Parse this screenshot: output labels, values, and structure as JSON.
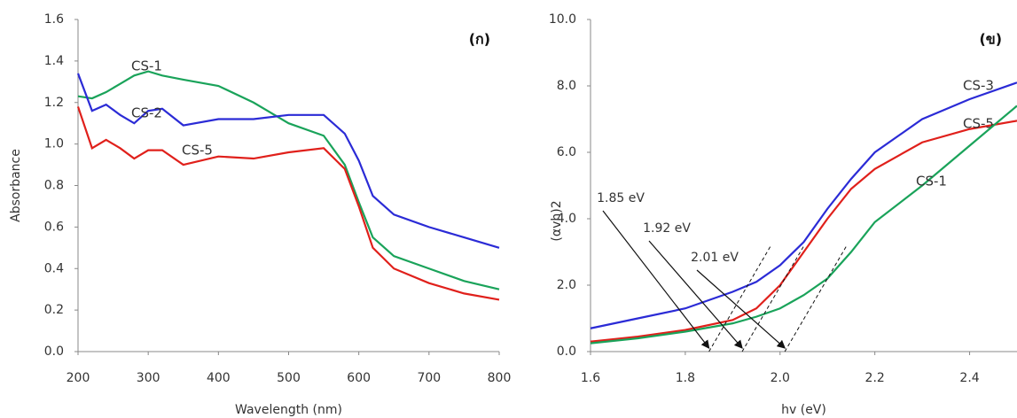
{
  "chart_data": [
    {
      "type": "line",
      "panel_label": "(ก)",
      "x_label": "Wavelength (nm)",
      "y_label": "Absorbance",
      "x": [
        200,
        220,
        240,
        260,
        280,
        300,
        320,
        350,
        400,
        450,
        500,
        550,
        580,
        600,
        620,
        650,
        700,
        750,
        800
      ],
      "series": [
        {
          "name": "CS-1",
          "color": "#1aa35a",
          "values": [
            1.23,
            1.22,
            1.25,
            1.29,
            1.33,
            1.35,
            1.33,
            1.31,
            1.28,
            1.2,
            1.1,
            1.04,
            0.9,
            0.72,
            0.55,
            0.46,
            0.4,
            0.34,
            0.3
          ]
        },
        {
          "name": "CS-2",
          "color": "#2b2bd6",
          "values": [
            1.34,
            1.16,
            1.19,
            1.14,
            1.1,
            1.16,
            1.17,
            1.09,
            1.12,
            1.12,
            1.14,
            1.14,
            1.05,
            0.92,
            0.75,
            0.66,
            0.6,
            0.55,
            0.5
          ]
        },
        {
          "name": "CS-5",
          "color": "#e0201b",
          "values": [
            1.18,
            0.98,
            1.02,
            0.98,
            0.93,
            0.97,
            0.97,
            0.9,
            0.94,
            0.93,
            0.96,
            0.98,
            0.88,
            0.7,
            0.5,
            0.4,
            0.33,
            0.28,
            0.25
          ]
        }
      ],
      "xlim": [
        200,
        800
      ],
      "xticks": [
        200,
        300,
        400,
        500,
        600,
        700,
        800
      ],
      "ylim": [
        0,
        1.6
      ],
      "yticks": [
        {
          "value": 0,
          "label": "0.0"
        },
        {
          "value": 0.2,
          "label": "0.2"
        },
        {
          "value": 0.4,
          "label": "0.4"
        },
        {
          "value": 0.6,
          "label": "0.6"
        },
        {
          "value": 0.8,
          "label": "0.8"
        },
        {
          "value": 1,
          "label": "1.0"
        },
        {
          "value": 1.2,
          "label": "1.2"
        },
        {
          "value": 1.4,
          "label": "1.4"
        },
        {
          "value": 1.6,
          "label": "1.6"
        }
      ]
    },
    {
      "type": "line",
      "panel_label": "(ข)",
      "x_label": "hv (eV)",
      "y_label": "(αvh)2",
      "x": [
        1.6,
        1.7,
        1.8,
        1.9,
        1.95,
        2.0,
        2.05,
        2.1,
        2.15,
        2.2,
        2.3,
        2.4,
        2.5
      ],
      "series": [
        {
          "name": "CS-3",
          "color": "#2b2bd6",
          "values": [
            0.7,
            1.0,
            1.3,
            1.8,
            2.1,
            2.6,
            3.3,
            4.3,
            5.2,
            6.0,
            7.0,
            7.6,
            8.1
          ]
        },
        {
          "name": "CS-5",
          "color": "#e0201b",
          "values": [
            0.3,
            0.45,
            0.65,
            0.95,
            1.3,
            2.0,
            3.0,
            4.0,
            4.9,
            5.5,
            6.3,
            6.7,
            6.95
          ]
        },
        {
          "name": "CS-1",
          "color": "#1aa35a",
          "values": [
            0.25,
            0.4,
            0.6,
            0.85,
            1.05,
            1.3,
            1.7,
            2.2,
            3.0,
            3.9,
            5.0,
            6.2,
            7.4
          ]
        }
      ],
      "annotations": [
        {
          "text": "1.85 eV",
          "x": 1.85
        },
        {
          "text": "1.92 eV",
          "x": 1.92
        },
        {
          "text": "2.01 eV",
          "x": 2.01
        }
      ],
      "xlim": [
        1.6,
        2.5
      ],
      "xticks": [
        1.6,
        1.8,
        {
          "value": 2,
          "label": "2.0"
        },
        2.2,
        2.4
      ],
      "ylim": [
        0,
        10
      ],
      "yticks": [
        {
          "value": 0,
          "label": "0.0"
        },
        {
          "value": 2,
          "label": "2.0"
        },
        {
          "value": 4,
          "label": "4.0"
        },
        {
          "value": 6,
          "label": "6.0"
        },
        {
          "value": 8,
          "label": "8.0"
        },
        {
          "value": 10,
          "label": "10.0"
        }
      ]
    }
  ]
}
